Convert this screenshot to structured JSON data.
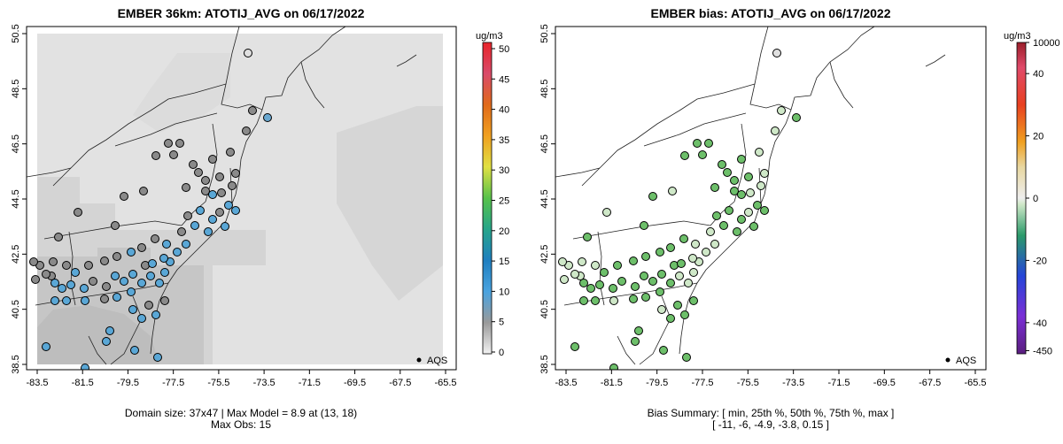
{
  "left_panel": {
    "title": "EMBER 36km: ATOTIJ_AVG on 06/17/2022",
    "footer_line1": "Domain size: 37x47 | Max Model = 8.9 at (13, 18)",
    "footer_line2": "Max Obs: 15",
    "legend_label": "AQS",
    "colorbar_unit": "ug/m3",
    "colorbar_ticks": [
      "0",
      "5",
      "10",
      "15",
      "20",
      "25",
      "30",
      "35",
      "40",
      "45",
      "50"
    ]
  },
  "right_panel": {
    "title": "EMBER bias: ATOTIJ_AVG on 06/17/2022",
    "footer_line1": "Bias Summary: [ min, 25th %, 50th %, 75th %, max ]",
    "footer_line2": "[ -11,   -6,   -4.9,   -3.8,   0.15 ]",
    "legend_label": "AQS",
    "colorbar_unit": "ug/m3",
    "colorbar_ticks": [
      "10000",
      "40",
      "20",
      "0",
      "-20",
      "-40",
      "-450"
    ]
  },
  "axes": {
    "x_ticks": [
      "-83.5",
      "-81.5",
      "-79.5",
      "-77.5",
      "-75.5",
      "-73.5",
      "-71.5",
      "-69.5",
      "-67.5",
      "-65.5"
    ],
    "y_ticks": [
      "50.5",
      "48.5",
      "46.5",
      "44.5",
      "42.5",
      "40.5",
      "38.5"
    ]
  },
  "colors": {
    "obs_blue": "#5aa7d6",
    "obs_grey": "#8c8c8c",
    "bias_green": "#6dbf6a",
    "bias_pale": "#cfe8c8",
    "land_grey": "#d9d9d9",
    "model_light": "#e6e6e6"
  }
}
